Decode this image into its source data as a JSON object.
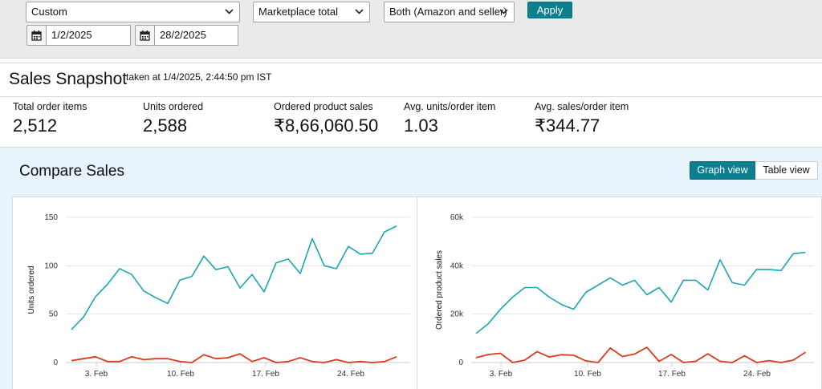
{
  "filters": {
    "date_range": "Custom",
    "marketplace": "Marketplace total",
    "fulfillment": "Both (Amazon and seller)",
    "apply_label": "Apply",
    "start_date": "1/2/2025",
    "end_date": "28/2/2025"
  },
  "snapshot": {
    "title": "Sales Snapshot",
    "taken_at": "taken at 1/4/2025, 2:44:50 pm IST",
    "metrics": [
      {
        "label": "Total order items",
        "value": "2,512"
      },
      {
        "label": "Units ordered",
        "value": "2,588"
      },
      {
        "label": "Ordered product sales",
        "value": "₹8,66,060.50"
      },
      {
        "label": "Avg. units/order item",
        "value": "1.03"
      },
      {
        "label": "Avg. sales/order item",
        "value": "₹344.77"
      }
    ]
  },
  "compare": {
    "title": "Compare Sales",
    "graph_view_label": "Graph view",
    "table_view_label": "Table view"
  },
  "colors": {
    "series_current": "#1ba5b3",
    "series_compare": "#dd3a1b",
    "accent": "#0d7f8e"
  },
  "chart_data": [
    {
      "type": "line",
      "ylabel": "Units ordered",
      "ylim": [
        0,
        150
      ],
      "yticks": [
        "0",
        "50",
        "100",
        "150"
      ],
      "xticks": [
        "3. Feb",
        "10. Feb",
        "17. Feb",
        "24. Feb"
      ],
      "x": [
        "1/2",
        "2/2",
        "3/2",
        "4/2",
        "5/2",
        "6/2",
        "7/2",
        "8/2",
        "9/2",
        "10/2",
        "11/2",
        "12/2",
        "13/2",
        "14/2",
        "15/2",
        "16/2",
        "17/2",
        "18/2",
        "19/2",
        "20/2",
        "21/2",
        "22/2",
        "23/2",
        "24/2",
        "25/2",
        "26/2",
        "27/2",
        "28/2"
      ],
      "grid": true,
      "series": [
        {
          "values": [
            34,
            47,
            68,
            81,
            97,
            91,
            74,
            67,
            61,
            85,
            89,
            110,
            96,
            99,
            77,
            91,
            73,
            103,
            107,
            92,
            128,
            100,
            97,
            120,
            112,
            113,
            135,
            141
          ]
        },
        {
          "values": [
            2,
            4,
            6,
            1,
            1,
            6,
            3,
            4,
            4,
            1,
            0,
            8,
            4,
            5,
            9,
            1,
            5,
            0,
            1,
            5,
            1,
            0,
            3,
            0,
            1,
            0,
            1,
            6
          ]
        }
      ]
    },
    {
      "type": "line",
      "ylabel": "Ordered product sales",
      "ylim": [
        0,
        60000
      ],
      "yticks": [
        "0",
        "20k",
        "40k",
        "60k"
      ],
      "xticks": [
        "3. Feb",
        "10. Feb",
        "17. Feb",
        "24. Feb"
      ],
      "x": [
        "1/2",
        "2/2",
        "3/2",
        "4/2",
        "5/2",
        "6/2",
        "7/2",
        "8/2",
        "9/2",
        "10/2",
        "11/2",
        "12/2",
        "13/2",
        "14/2",
        "15/2",
        "16/2",
        "17/2",
        "18/2",
        "19/2",
        "20/2",
        "21/2",
        "22/2",
        "23/2",
        "24/2",
        "25/2",
        "26/2",
        "27/2",
        "28/2"
      ],
      "grid": true,
      "series": [
        {
          "values": [
            12000,
            16000,
            22000,
            27000,
            31000,
            31000,
            27000,
            24000,
            22000,
            29000,
            32000,
            35000,
            32000,
            34000,
            28000,
            31000,
            25000,
            34000,
            34000,
            30000,
            42500,
            33000,
            32000,
            38500,
            38500,
            38000,
            45000,
            45500
          ]
        },
        {
          "values": [
            2000,
            3300,
            3800,
            0,
            1000,
            4500,
            2300,
            3200,
            3000,
            700,
            0,
            6000,
            2500,
            3500,
            6300,
            500,
            3300,
            0,
            500,
            3600,
            500,
            0,
            2800,
            0,
            800,
            0,
            1000,
            4200
          ]
        }
      ]
    }
  ]
}
